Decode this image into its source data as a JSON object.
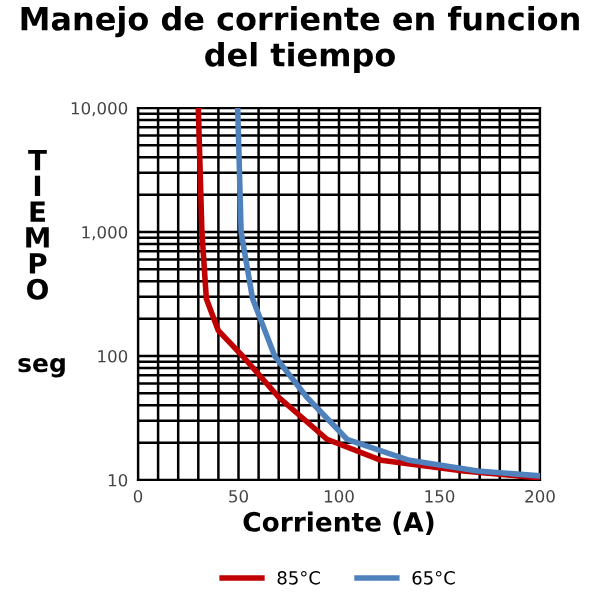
{
  "chart_data": {
    "type": "line",
    "title": "Manejo de corriente en funcion del tiempo",
    "xlabel": "Corriente (A)",
    "ylabel": "TIEMPO",
    "annotations": [
      "seg"
    ],
    "series": [
      {
        "name": "85°C",
        "color": "#c00000",
        "x": [
          30,
          31.8,
          34,
          40,
          52,
          70,
          94,
          121,
          162,
          200
        ],
        "values": [
          10000,
          1000,
          290,
          160,
          100,
          46.5,
          21.3,
          14.4,
          11.8,
          10.4
        ]
      },
      {
        "name": "65°C",
        "color": "#4f81bd",
        "x": [
          49.6,
          51.3,
          57,
          68,
          84,
          104,
          135,
          169,
          200
        ],
        "values": [
          10000,
          1000,
          290,
          100,
          46.5,
          21.3,
          14.4,
          11.8,
          10.8
        ]
      }
    ],
    "log": "y",
    "xlim": [
      0,
      200
    ],
    "ylim": [
      10,
      10000
    ],
    "xticks": [
      0,
      {
        "value": 10,
        "label": null
      },
      {
        "value": 20,
        "label": null
      },
      {
        "value": 30,
        "label": null
      },
      {
        "value": 40,
        "label": null
      },
      50,
      {
        "value": 60,
        "label": null
      },
      {
        "value": 70,
        "label": null
      },
      {
        "value": 80,
        "label": null
      },
      {
        "value": 90,
        "label": null
      },
      100,
      {
        "value": 110,
        "label": null
      },
      {
        "value": 120,
        "label": null
      },
      {
        "value": 130,
        "label": null
      },
      {
        "value": 140,
        "label": null
      },
      150,
      {
        "value": 160,
        "label": null
      },
      {
        "value": 170,
        "label": null
      },
      {
        "value": 180,
        "label": null
      },
      {
        "value": 190,
        "label": null
      },
      200
    ],
    "yticks": [
      10,
      {
        "value": 20,
        "label": null
      },
      {
        "value": 30,
        "label": null
      },
      {
        "value": 40,
        "label": null
      },
      {
        "value": 50,
        "label": null
      },
      {
        "value": 60,
        "label": null
      },
      {
        "value": 70,
        "label": null
      },
      {
        "value": 80,
        "label": null
      },
      {
        "value": 90,
        "label": null
      },
      100,
      {
        "value": 200,
        "label": null
      },
      {
        "value": 300,
        "label": null
      },
      {
        "value": 400,
        "label": null
      },
      {
        "value": 500,
        "label": null
      },
      {
        "value": 600,
        "label": null
      },
      {
        "value": 700,
        "label": null
      },
      {
        "value": 800,
        "label": null
      },
      {
        "value": 900,
        "label": null
      },
      {
        "value": 1000,
        "label": "1,000"
      },
      {
        "value": 2000,
        "label": null
      },
      {
        "value": 3000,
        "label": null
      },
      {
        "value": 4000,
        "label": null
      },
      {
        "value": 5000,
        "label": null
      },
      {
        "value": 6000,
        "label": null
      },
      {
        "value": 7000,
        "label": null
      },
      {
        "value": 8000,
        "label": null
      },
      {
        "value": 9000,
        "label": null
      },
      {
        "value": 10000,
        "label": "10,000"
      }
    ],
    "grid": true,
    "legend": "bottom",
    "marker": "none",
    "line_style": "solid"
  }
}
